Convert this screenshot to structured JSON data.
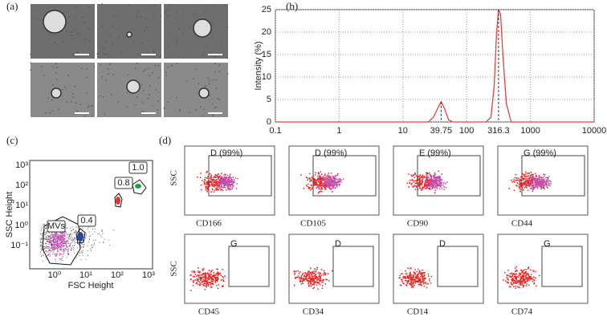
{
  "panel_labels": [
    "(a)",
    "(b)",
    "(c)",
    "(d)"
  ],
  "chart_data": {
    "type": "line",
    "ylabel": "Intensity (%)",
    "log_x": true,
    "grid": true,
    "xlim": [
      0.1,
      10000
    ],
    "xticks": [
      0.1,
      1,
      10,
      100,
      1000,
      10000
    ],
    "ylim": [
      0,
      25
    ],
    "yticks": [
      0,
      5,
      10,
      15,
      20,
      25
    ],
    "x": [
      0.1,
      25,
      30,
      35,
      39.75,
      45,
      52,
      60,
      200,
      240,
      270,
      295,
      316.3,
      340,
      370,
      420,
      500,
      10000
    ],
    "series": [
      {
        "color": "#e8403a",
        "values": [
          0,
          0,
          1,
          3,
          4.5,
          3,
          0.5,
          0,
          0,
          1,
          8,
          20,
          25,
          24,
          15,
          4,
          0,
          0
        ]
      }
    ],
    "peak_markers": [
      39.75,
      316.3
    ]
  },
  "flow": {
    "xlabel": "FSC Height",
    "ylabel": "SSC Height",
    "xticks": [
      "10⁰",
      "10¹",
      "10²",
      "10³"
    ],
    "yticks": [
      "10⁻¹",
      "10⁰",
      "10¹",
      "10²",
      "10³"
    ],
    "gates": [
      "MVs",
      "0.4",
      "0.8",
      "1.0"
    ]
  },
  "markers": {
    "axis_label": "SSC",
    "plots": [
      {
        "label": "CD166",
        "gate": "D (99%)"
      },
      {
        "label": "CD105",
        "gate": "D (99%)"
      },
      {
        "label": "CD90",
        "gate": "E (99%)"
      },
      {
        "label": "CD44",
        "gate": "G (99%)"
      },
      {
        "label": "CD45",
        "gate": "G"
      },
      {
        "label": "CD34",
        "gate": "D"
      },
      {
        "label": "CD14",
        "gate": "D"
      },
      {
        "label": "CD74",
        "gate": "G"
      }
    ]
  }
}
